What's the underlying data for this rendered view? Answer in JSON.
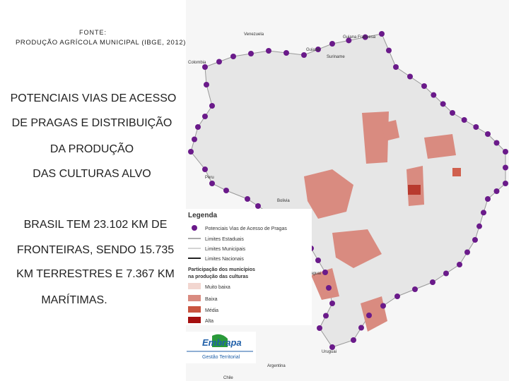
{
  "source": {
    "label": "FONTE:",
    "text": "PRODUÇÃO AGRÍCOLA MUNICIPAL (IBGE, 2012)"
  },
  "heading": [
    "POTENCIAIS VIAS DE ACESSO",
    "DE PRAGAS E DISTRIBUIÇÃO",
    "DA PRODUÇÃO",
    "DAS CULTURAS ALVO"
  ],
  "body": [
    "BRASIL TEM 23.102 KM DE",
    "FRONTEIRAS, SENDO 15.735",
    "KM TERRESTRES E 7.367 KM",
    "MARÍTIMAS."
  ],
  "map": {
    "countries": [
      "Venezuela",
      "Guiana Francesa",
      "Suriname",
      "Guiana",
      "Colombia",
      "Peru",
      "Bolivia",
      "Paraguai",
      "Uruguai",
      "Argentina",
      "Chile"
    ]
  },
  "legend": {
    "title": "Legenda",
    "items": [
      "Potenciais Vias de Acesso de Pragas",
      "Limites Estaduais",
      "Limites Municipais",
      "Limites Nacionais"
    ],
    "participation": [
      "Participação dos municípios",
      "na produção das culturas"
    ],
    "classes": [
      "Muito baixa",
      "Baixa",
      "Média",
      "Alta"
    ]
  },
  "logo": {
    "name": "Embrapa",
    "subtitle": "Gestão Territorial"
  }
}
